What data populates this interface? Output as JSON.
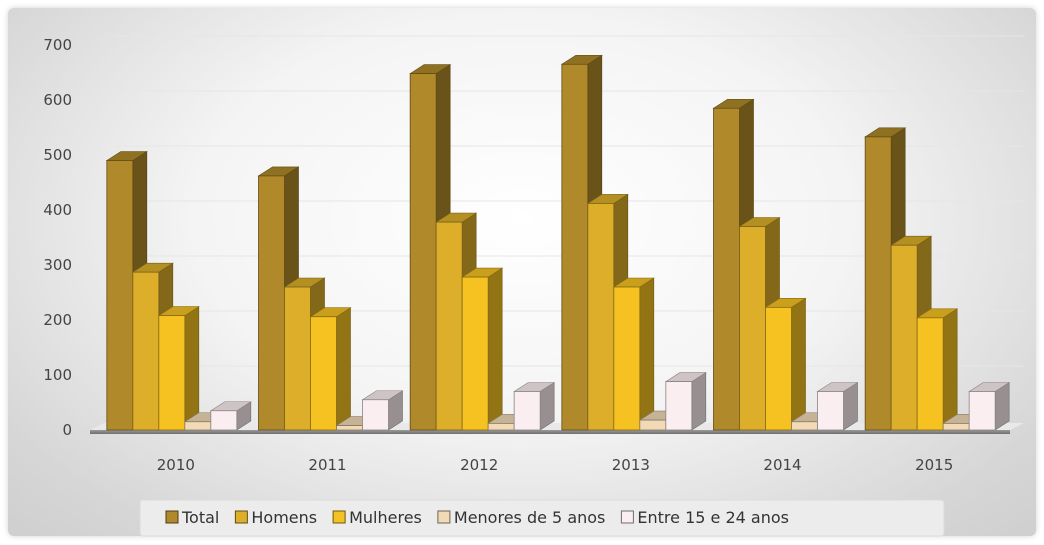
{
  "chart_data": {
    "type": "bar",
    "categories": [
      "2010",
      "2011",
      "2012",
      "2013",
      "2014",
      "2015"
    ],
    "series": [
      {
        "name": "Total",
        "values": [
          490,
          462,
          648,
          665,
          585,
          533
        ]
      },
      {
        "name": "Homens",
        "values": [
          287,
          260,
          378,
          412,
          370,
          336
        ]
      },
      {
        "name": "Mulheres",
        "values": [
          208,
          206,
          278,
          260,
          223,
          204
        ]
      },
      {
        "name": "Menores de 5 anos",
        "values": [
          15,
          8,
          12,
          18,
          15,
          12
        ]
      },
      {
        "name": "Entre 15 e 24 anos",
        "values": [
          35,
          55,
          70,
          88,
          70,
          70
        ]
      }
    ],
    "yticks": [
      "0",
      "100",
      "200",
      "300",
      "400",
      "500",
      "600",
      "700"
    ],
    "ylim": [
      0,
      700
    ],
    "grid": true,
    "legend_position": "bottom",
    "colors": [
      "#b08a2a",
      "#dcae2a",
      "#f5c221",
      "#f2dab7",
      "#fbeef0"
    ]
  }
}
